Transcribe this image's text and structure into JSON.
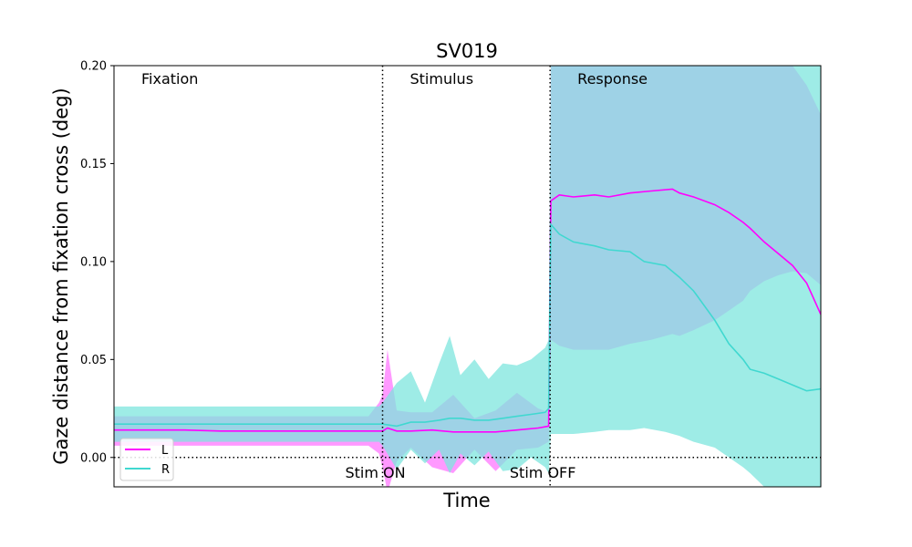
{
  "chart_data": {
    "type": "area",
    "title": "SV019",
    "xlabel": "Time",
    "ylabel": "Gaze distance from fixation cross (deg)",
    "xlim": [
      0,
      100
    ],
    "ylim": [
      -0.015,
      0.2
    ],
    "y_ticks": [
      "0.00",
      "0.05",
      "0.10",
      "0.15",
      "0.20"
    ],
    "y_tick_values": [
      0.0,
      0.05,
      0.1,
      0.15,
      0.2
    ],
    "grid": false,
    "legend_position": "lower-left",
    "phases": [
      {
        "label": "Fixation",
        "start": 0
      },
      {
        "label": "Stimulus",
        "start": 38
      },
      {
        "label": "Response",
        "start": 61.7
      }
    ],
    "markers": [
      {
        "label": "Stim ON",
        "x": 38
      },
      {
        "label": "Stim OFF",
        "x": 61.7
      }
    ],
    "zero_line": 0.0,
    "series": [
      {
        "name": "L",
        "color": "#ff00ff",
        "band_color": "#ff77ff",
        "x": [
          0,
          5,
          10,
          15,
          20,
          25,
          30,
          36,
          37.5,
          38,
          38.7,
          40,
          42,
          45,
          48,
          51,
          54,
          57,
          60,
          61.5,
          61.8,
          63,
          65,
          68,
          70,
          73,
          76,
          79,
          80,
          82,
          85,
          87,
          89,
          90,
          92,
          94,
          96,
          98,
          100
        ],
        "mean": [
          0.014,
          0.014,
          0.014,
          0.0135,
          0.0135,
          0.0135,
          0.0135,
          0.0135,
          0.0135,
          0.0135,
          0.015,
          0.0135,
          0.0135,
          0.014,
          0.013,
          0.013,
          0.013,
          0.014,
          0.015,
          0.016,
          0.131,
          0.134,
          0.133,
          0.134,
          0.133,
          0.135,
          0.136,
          0.137,
          0.135,
          0.133,
          0.129,
          0.125,
          0.12,
          0.117,
          0.11,
          0.104,
          0.098,
          0.089,
          0.073
        ],
        "upper": [
          0.021,
          0.021,
          0.021,
          0.021,
          0.021,
          0.021,
          0.021,
          0.021,
          0.028,
          0.032,
          0.055,
          0.024,
          0.023,
          0.023,
          0.032,
          0.02,
          0.024,
          0.033,
          0.025,
          0.023,
          0.2,
          0.2,
          0.2,
          0.2,
          0.2,
          0.2,
          0.2,
          0.2,
          0.2,
          0.2,
          0.2,
          0.2,
          0.2,
          0.2,
          0.2,
          0.2,
          0.2,
          0.19,
          0.175
        ],
        "lower": [
          0.006,
          0.006,
          0.006,
          0.006,
          0.006,
          0.006,
          0.006,
          0.006,
          0.002,
          -0.005,
          -0.018,
          -0.002,
          0.005,
          -0.005,
          -0.008,
          0.004,
          -0.007,
          0.004,
          0.005,
          0.008,
          0.06,
          0.057,
          0.055,
          0.055,
          0.055,
          0.058,
          0.06,
          0.063,
          0.062,
          0.065,
          0.07,
          0.075,
          0.08,
          0.085,
          0.09,
          0.093,
          0.095,
          0.094,
          0.088
        ]
      },
      {
        "name": "R",
        "color": "#40d8d0",
        "band_color": "#7ee6dd",
        "x": [
          0,
          5,
          10,
          15,
          20,
          25,
          30,
          36,
          37.5,
          38,
          40,
          42,
          44,
          46,
          47.5,
          49,
          51,
          53,
          55,
          57,
          59,
          61,
          61.5,
          61.8,
          63,
          65,
          68,
          70,
          73,
          75,
          78,
          80,
          82,
          85,
          87,
          89,
          90,
          92,
          94,
          96,
          98,
          100
        ],
        "mean": [
          0.017,
          0.017,
          0.017,
          0.017,
          0.017,
          0.017,
          0.017,
          0.017,
          0.017,
          0.017,
          0.016,
          0.018,
          0.018,
          0.019,
          0.02,
          0.02,
          0.019,
          0.019,
          0.02,
          0.021,
          0.022,
          0.023,
          0.025,
          0.119,
          0.114,
          0.11,
          0.108,
          0.106,
          0.105,
          0.1,
          0.098,
          0.092,
          0.085,
          0.07,
          0.058,
          0.05,
          0.045,
          0.043,
          0.04,
          0.037,
          0.034,
          0.035
        ],
        "upper": [
          0.026,
          0.026,
          0.026,
          0.026,
          0.026,
          0.026,
          0.026,
          0.026,
          0.026,
          0.028,
          0.038,
          0.044,
          0.028,
          0.048,
          0.062,
          0.042,
          0.05,
          0.04,
          0.048,
          0.047,
          0.05,
          0.056,
          0.06,
          0.2,
          0.2,
          0.2,
          0.2,
          0.2,
          0.2,
          0.2,
          0.2,
          0.2,
          0.2,
          0.2,
          0.2,
          0.2,
          0.2,
          0.2,
          0.2,
          0.2,
          0.2,
          0.2
        ],
        "lower": [
          0.008,
          0.008,
          0.008,
          0.008,
          0.008,
          0.008,
          0.008,
          0.008,
          0.008,
          0.006,
          -0.006,
          0.004,
          -0.003,
          0.004,
          -0.008,
          0.002,
          -0.004,
          0.003,
          -0.007,
          -0.006,
          0.0,
          -0.005,
          -0.008,
          0.012,
          0.012,
          0.012,
          0.013,
          0.014,
          0.014,
          0.015,
          0.013,
          0.011,
          0.008,
          0.005,
          0.0,
          -0.005,
          -0.008,
          -0.015,
          -0.015,
          -0.015,
          -0.015,
          -0.015
        ]
      }
    ]
  }
}
